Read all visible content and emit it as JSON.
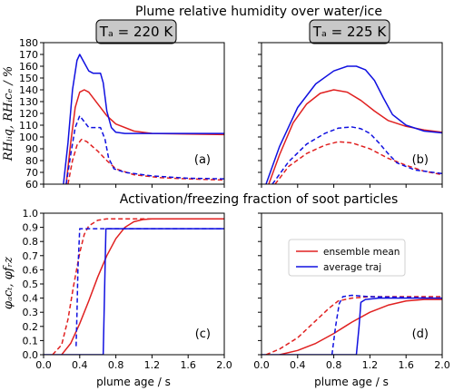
{
  "figure": {
    "title_top": "Plume relative humidity over water/ice",
    "title_bottom": "Activation/freezing fraction of soot particles",
    "col_label_left": "Tₐ = 220 K",
    "col_label_right": "Tₐ = 225 K",
    "ylabel_top": "RHₗᵢq, RHᵢcₑ / %",
    "ylabel_bottom": "φₐcₜ, φfᵣz",
    "xlabel": "plume age / s",
    "legend": [
      {
        "label": "ensemble mean",
        "color": "#e02020"
      },
      {
        "label": "average traj",
        "color": "#1010e0"
      }
    ]
  },
  "chart_data": [
    {
      "type": "line",
      "panel": "(a)",
      "xlim": [
        0,
        2
      ],
      "ylim": [
        60,
        180
      ],
      "xticks": [
        0.0,
        0.4,
        0.8,
        1.2,
        1.6,
        2.0
      ],
      "yticks": [
        60,
        70,
        80,
        90,
        100,
        110,
        120,
        130,
        140,
        150,
        160,
        170,
        180
      ],
      "series": [
        {
          "color": "#e02020",
          "dash": "solid",
          "points": [
            [
              0.25,
              60
            ],
            [
              0.3,
              95
            ],
            [
              0.35,
              125
            ],
            [
              0.4,
              138
            ],
            [
              0.45,
              140
            ],
            [
              0.5,
              138
            ],
            [
              0.6,
              128
            ],
            [
              0.7,
              118
            ],
            [
              0.8,
              111
            ],
            [
              1.0,
              105
            ],
            [
              1.2,
              103
            ],
            [
              1.6,
              102.5
            ],
            [
              2.0,
              102
            ]
          ]
        },
        {
          "color": "#1010e0",
          "dash": "solid",
          "points": [
            [
              0.22,
              60
            ],
            [
              0.27,
              95
            ],
            [
              0.32,
              140
            ],
            [
              0.37,
              165
            ],
            [
              0.4,
              170
            ],
            [
              0.45,
              163
            ],
            [
              0.5,
              156
            ],
            [
              0.55,
              154
            ],
            [
              0.63,
              154
            ],
            [
              0.66,
              146
            ],
            [
              0.7,
              122
            ],
            [
              0.75,
              108
            ],
            [
              0.8,
              104
            ],
            [
              0.9,
              103
            ],
            [
              1.2,
              103
            ],
            [
              2.0,
              103
            ]
          ]
        },
        {
          "color": "#e02020",
          "dash": "dashed",
          "points": [
            [
              0.27,
              60
            ],
            [
              0.32,
              80
            ],
            [
              0.37,
              93
            ],
            [
              0.42,
              98
            ],
            [
              0.48,
              96
            ],
            [
              0.6,
              88
            ],
            [
              0.7,
              80
            ],
            [
              0.8,
              73
            ],
            [
              1.0,
              68
            ],
            [
              1.3,
              65.5
            ],
            [
              1.6,
              64.5
            ],
            [
              2.0,
              63.5
            ]
          ]
        },
        {
          "color": "#1010e0",
          "dash": "dashed",
          "points": [
            [
              0.25,
              60
            ],
            [
              0.3,
              85
            ],
            [
              0.35,
              108
            ],
            [
              0.4,
              118
            ],
            [
              0.45,
              113
            ],
            [
              0.5,
              108
            ],
            [
              0.63,
              108
            ],
            [
              0.68,
              98
            ],
            [
              0.72,
              82
            ],
            [
              0.78,
              73
            ],
            [
              0.9,
              70
            ],
            [
              1.2,
              67
            ],
            [
              1.6,
              65
            ],
            [
              2.0,
              64.5
            ]
          ]
        }
      ]
    },
    {
      "type": "line",
      "panel": "(b)",
      "xlim": [
        0,
        2
      ],
      "ylim": [
        60,
        180
      ],
      "xticks": [
        0.0,
        0.4,
        0.8,
        1.2,
        1.6,
        2.0
      ],
      "series": [
        {
          "color": "#e02020",
          "dash": "solid",
          "points": [
            [
              0.08,
              60
            ],
            [
              0.2,
              85
            ],
            [
              0.35,
              112
            ],
            [
              0.5,
              128
            ],
            [
              0.65,
              137
            ],
            [
              0.8,
              140
            ],
            [
              0.95,
              138
            ],
            [
              1.1,
              131
            ],
            [
              1.25,
              122
            ],
            [
              1.4,
              114
            ],
            [
              1.6,
              109
            ],
            [
              1.8,
              106
            ],
            [
              2.0,
              104
            ]
          ]
        },
        {
          "color": "#1010e0",
          "dash": "solid",
          "points": [
            [
              0.05,
              60
            ],
            [
              0.2,
              92
            ],
            [
              0.4,
              125
            ],
            [
              0.6,
              145
            ],
            [
              0.8,
              156
            ],
            [
              0.95,
              160
            ],
            [
              1.05,
              160
            ],
            [
              1.15,
              157
            ],
            [
              1.25,
              148
            ],
            [
              1.35,
              133
            ],
            [
              1.45,
              119
            ],
            [
              1.6,
              110
            ],
            [
              1.8,
              105
            ],
            [
              2.0,
              103.5
            ]
          ]
        },
        {
          "color": "#e02020",
          "dash": "dashed",
          "points": [
            [
              0.15,
              60
            ],
            [
              0.3,
              75
            ],
            [
              0.5,
              86
            ],
            [
              0.7,
              93
            ],
            [
              0.85,
              96
            ],
            [
              1.0,
              95
            ],
            [
              1.2,
              90
            ],
            [
              1.4,
              82
            ],
            [
              1.6,
              76
            ],
            [
              1.8,
              71
            ],
            [
              2.0,
              68
            ]
          ]
        },
        {
          "color": "#1010e0",
          "dash": "dashed",
          "points": [
            [
              0.12,
              60
            ],
            [
              0.3,
              79
            ],
            [
              0.5,
              94
            ],
            [
              0.7,
              103
            ],
            [
              0.85,
              107.5
            ],
            [
              1.0,
              108.5
            ],
            [
              1.1,
              107
            ],
            [
              1.2,
              103
            ],
            [
              1.3,
              95
            ],
            [
              1.4,
              86
            ],
            [
              1.5,
              78
            ],
            [
              1.7,
              72
            ],
            [
              2.0,
              69
            ]
          ]
        }
      ]
    },
    {
      "type": "line",
      "panel": "(c)",
      "xlim": [
        0,
        2
      ],
      "ylim": [
        0,
        1.0
      ],
      "xticks": [
        0.0,
        0.4,
        0.8,
        1.2,
        1.6,
        2.0
      ],
      "yticks": [
        0.0,
        0.1,
        0.2,
        0.3,
        0.4,
        0.5,
        0.6,
        0.7,
        0.8,
        0.9,
        1.0
      ],
      "series": [
        {
          "color": "#e02020",
          "dash": "solid",
          "points": [
            [
              0.2,
              0.0
            ],
            [
              0.3,
              0.08
            ],
            [
              0.4,
              0.22
            ],
            [
              0.5,
              0.38
            ],
            [
              0.6,
              0.55
            ],
            [
              0.7,
              0.7
            ],
            [
              0.8,
              0.82
            ],
            [
              0.9,
              0.9
            ],
            [
              1.0,
              0.94
            ],
            [
              1.1,
              0.955
            ],
            [
              1.2,
              0.96
            ],
            [
              2.0,
              0.96
            ]
          ]
        },
        {
          "color": "#1010e0",
          "dash": "solid",
          "points": [
            [
              0.0,
              0.0
            ],
            [
              0.66,
              0.0
            ],
            [
              0.67,
              0.3
            ],
            [
              0.68,
              0.6
            ],
            [
              0.69,
              0.89
            ],
            [
              2.0,
              0.89
            ]
          ]
        },
        {
          "color": "#e02020",
          "dash": "dashed",
          "points": [
            [
              0.1,
              0.0
            ],
            [
              0.2,
              0.07
            ],
            [
              0.27,
              0.25
            ],
            [
              0.33,
              0.48
            ],
            [
              0.4,
              0.72
            ],
            [
              0.45,
              0.85
            ],
            [
              0.5,
              0.91
            ],
            [
              0.6,
              0.95
            ],
            [
              0.7,
              0.96
            ],
            [
              2.0,
              0.96
            ]
          ]
        },
        {
          "color": "#1010e0",
          "dash": "dashed",
          "points": [
            [
              0.36,
              0.06
            ],
            [
              0.37,
              0.3
            ],
            [
              0.38,
              0.6
            ],
            [
              0.4,
              0.89
            ],
            [
              2.0,
              0.89
            ]
          ]
        }
      ]
    },
    {
      "type": "line",
      "panel": "(d)",
      "xlim": [
        0,
        2
      ],
      "ylim": [
        0,
        1.0
      ],
      "xticks": [
        0.0,
        0.4,
        0.8,
        1.2,
        1.6,
        2.0
      ],
      "series": [
        {
          "color": "#e02020",
          "dash": "solid",
          "points": [
            [
              0.2,
              0.0
            ],
            [
              0.4,
              0.03
            ],
            [
              0.6,
              0.08
            ],
            [
              0.8,
              0.15
            ],
            [
              1.0,
              0.23
            ],
            [
              1.2,
              0.3
            ],
            [
              1.4,
              0.35
            ],
            [
              1.6,
              0.38
            ],
            [
              1.8,
              0.39
            ],
            [
              2.0,
              0.39
            ]
          ]
        },
        {
          "color": "#1010e0",
          "dash": "solid",
          "points": [
            [
              0.0,
              0.0
            ],
            [
              1.05,
              0.0
            ],
            [
              1.08,
              0.2
            ],
            [
              1.1,
              0.37
            ],
            [
              1.15,
              0.39
            ],
            [
              1.3,
              0.4
            ],
            [
              2.0,
              0.4
            ]
          ]
        },
        {
          "color": "#e02020",
          "dash": "dashed",
          "points": [
            [
              0.05,
              0.0
            ],
            [
              0.2,
              0.04
            ],
            [
              0.4,
              0.12
            ],
            [
              0.6,
              0.24
            ],
            [
              0.75,
              0.33
            ],
            [
              0.85,
              0.38
            ],
            [
              1.0,
              0.4
            ],
            [
              1.2,
              0.41
            ],
            [
              2.0,
              0.41
            ]
          ]
        },
        {
          "color": "#1010e0",
          "dash": "dashed",
          "points": [
            [
              0.78,
              0.0
            ],
            [
              0.82,
              0.2
            ],
            [
              0.86,
              0.36
            ],
            [
              0.9,
              0.41
            ],
            [
              1.0,
              0.42
            ],
            [
              1.2,
              0.41
            ],
            [
              2.0,
              0.4
            ]
          ]
        }
      ]
    }
  ]
}
